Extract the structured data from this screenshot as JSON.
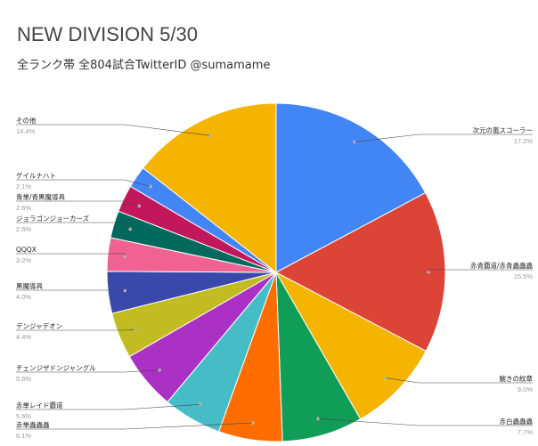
{
  "title": "NEW DIVISION 5/30",
  "subtitle": "全ランク帯 全804試合TwitterID @sumamame",
  "chart_data": {
    "type": "pie",
    "title": "NEW DIVISION 5/30",
    "subtitle": "全ランク帯 全804試合TwitterID @sumamame",
    "legend": "labels",
    "slices": [
      {
        "name": "次元の嵐スコーラー",
        "percent": 17.2,
        "label": "17.2%",
        "color": "#4285f4"
      },
      {
        "name": "赤青覇道/赤青蟲蟲蟲",
        "percent": 15.5,
        "label": "15.5%",
        "color": "#db4437"
      },
      {
        "name": "鯱きの紋章",
        "percent": 9.0,
        "label": "9.0%",
        "color": "#f4b400"
      },
      {
        "name": "赤白蟲蟲蟲",
        "percent": 7.7,
        "label": "7.7%",
        "color": "#0f9d58"
      },
      {
        "name": "赤単蟲蟲蟲",
        "percent": 6.1,
        "label": "6.1%",
        "color": "#ff6d01"
      },
      {
        "name": "赤単レイド覇道",
        "percent": 5.6,
        "label": "5.6%",
        "color": "#46bdc6"
      },
      {
        "name": "チェンジザドンジャングル",
        "percent": 5.6,
        "label": "5.6%",
        "color": "#ab30c4"
      },
      {
        "name": "デンジャデオン",
        "percent": 4.4,
        "label": "4.4%",
        "color": "#c2bc22"
      },
      {
        "name": "黒魔導具",
        "percent": 4.0,
        "label": "4.0%",
        "color": "#3949ab"
      },
      {
        "name": "QQQX",
        "percent": 3.2,
        "label": "3.2%",
        "color": "#f06292"
      },
      {
        "name": "ジョラゴンジョーカーズ",
        "percent": 2.6,
        "label": "2.6%",
        "color": "#00695c"
      },
      {
        "name": "青単/青黒魔導具",
        "percent": 2.6,
        "label": "2.6%",
        "color": "#c2185b"
      },
      {
        "name": "ゲイルナハト",
        "percent": 2.1,
        "label": "2.1%",
        "color": "#4285f4"
      },
      {
        "name": "その他",
        "percent": 14.4,
        "label": "14.4%",
        "color": "#f4b400"
      }
    ]
  }
}
